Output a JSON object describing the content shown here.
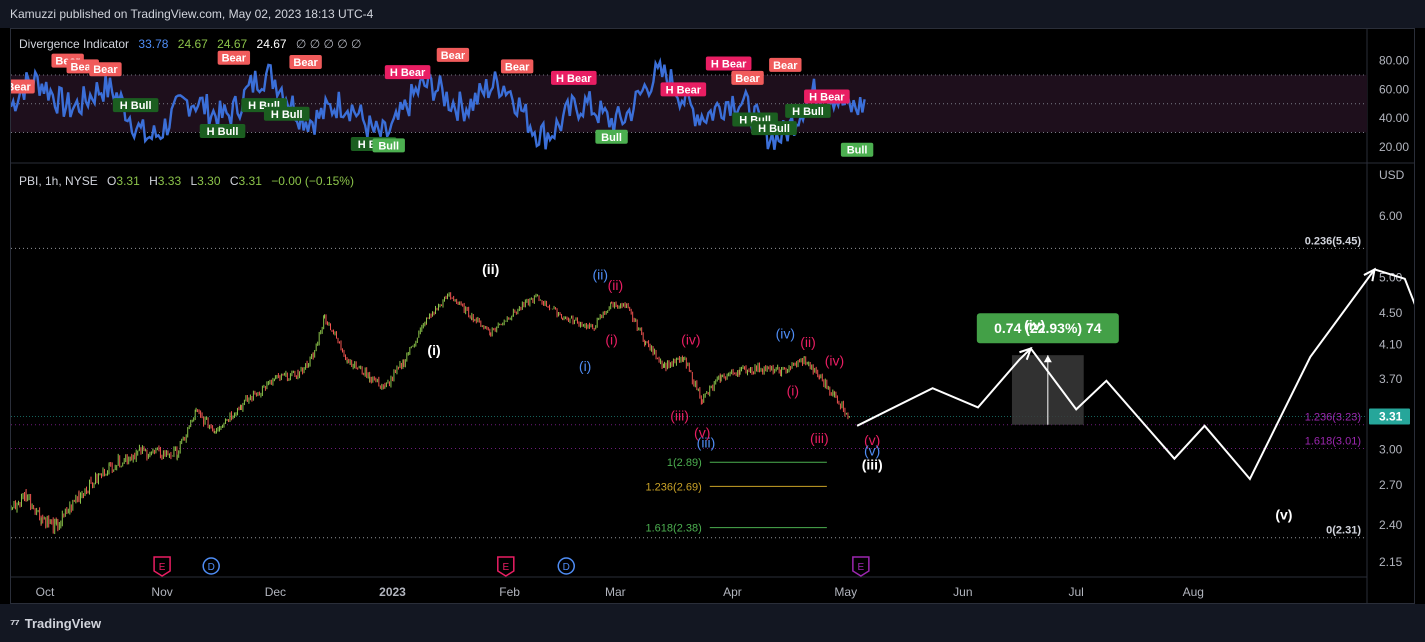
{
  "header": {
    "publish_text": "Kamuzzi published on TradingView.com, May 02, 2023 18:13 UTC-4"
  },
  "footer": {
    "brand": "TradingView"
  },
  "indicator": {
    "name": "Divergence Indicator",
    "values": [
      "33.78",
      "24.67",
      "24.67",
      "24.67"
    ],
    "value_colors": [
      "#4f8df5",
      "#8bc34a",
      "#8bc34a",
      "#ffffff"
    ],
    "placeholders": "∅ ∅ ∅ ∅ ∅",
    "axis_ticks": [
      80,
      60,
      40,
      20
    ],
    "axis_labels": [
      "80.00",
      "60.00",
      "40.00",
      "20.00"
    ],
    "ylim": [
      15,
      95
    ],
    "band": [
      30,
      70
    ],
    "midline": 50,
    "signals": [
      {
        "label": "Bear",
        "type": "bear",
        "x": "2022-09-24",
        "y": 62
      },
      {
        "label": "Bear",
        "type": "bear",
        "x": "2022-10-07",
        "y": 80
      },
      {
        "label": "Bear",
        "type": "bear",
        "x": "2022-10-11",
        "y": 76
      },
      {
        "label": "Bear",
        "type": "bear",
        "x": "2022-10-17",
        "y": 74
      },
      {
        "label": "H Bull",
        "type": "hbull",
        "x": "2022-10-25",
        "y": 49
      },
      {
        "label": "Bear",
        "type": "bear",
        "x": "2022-11-20",
        "y": 82
      },
      {
        "label": "H Bull",
        "type": "hbull",
        "x": "2022-11-17",
        "y": 31
      },
      {
        "label": "H Bull",
        "type": "hbull",
        "x": "2022-11-28",
        "y": 49
      },
      {
        "label": "H Bull",
        "type": "hbull",
        "x": "2022-12-04",
        "y": 43
      },
      {
        "label": "Bear",
        "type": "bear",
        "x": "2022-12-09",
        "y": 79
      },
      {
        "label": "H Bull",
        "type": "hbull",
        "x": "2022-12-27",
        "y": 22
      },
      {
        "label": "Bull",
        "type": "bull",
        "x": "2022-12-31",
        "y": 21
      },
      {
        "label": "H Bear",
        "type": "hbear",
        "x": "2023-01-05",
        "y": 72
      },
      {
        "label": "Bear",
        "type": "bear",
        "x": "2023-01-17",
        "y": 84
      },
      {
        "label": "Bear",
        "type": "bear",
        "x": "2023-02-03",
        "y": 76
      },
      {
        "label": "H Bear",
        "type": "hbear",
        "x": "2023-02-18",
        "y": 68
      },
      {
        "label": "Bull",
        "type": "bull",
        "x": "2023-02-28",
        "y": 27
      },
      {
        "label": "H Bear",
        "type": "hbear",
        "x": "2023-03-19",
        "y": 60
      },
      {
        "label": "H Bear",
        "type": "hbear",
        "x": "2023-03-31",
        "y": 78
      },
      {
        "label": "Bear",
        "type": "bear",
        "x": "2023-04-05",
        "y": 68
      },
      {
        "label": "H Bull",
        "type": "hbull",
        "x": "2023-04-07",
        "y": 39
      },
      {
        "label": "Bear",
        "type": "bear",
        "x": "2023-04-15",
        "y": 77
      },
      {
        "label": "H Bull",
        "type": "hbull",
        "x": "2023-04-12",
        "y": 33
      },
      {
        "label": "H Bull",
        "type": "hbull",
        "x": "2023-04-21",
        "y": 45
      },
      {
        "label": "H Bear",
        "type": "hbear",
        "x": "2023-04-26",
        "y": 55
      },
      {
        "label": "Bull",
        "type": "bull",
        "x": "2023-05-04",
        "y": 18
      }
    ],
    "colors": {
      "line": "#3b6fd8",
      "bear": "#f05b5b",
      "hbear": "#e91e63",
      "bull": "#4caf50",
      "hbull": "#1b5e20",
      "band": "#1e0f1c"
    }
  },
  "symbol": {
    "name": "PBI, 1h, NYSE",
    "open_label": "O",
    "open": "3.31",
    "high_label": "H",
    "high": "3.33",
    "low_label": "L",
    "low": "3.30",
    "close_label": "C",
    "close": "3.31",
    "change": "−0.00 (−0.15%)",
    "currency": "USD"
  },
  "chart_data": {
    "type": "line",
    "title": "PBI, 1h, NYSE",
    "price_axis": {
      "scale": "log",
      "ylim": [
        2.05,
        7.0
      ],
      "ticks": [
        6.0,
        5.0,
        4.5,
        4.1,
        3.7,
        3.31,
        3.0,
        2.7,
        2.4,
        2.15
      ],
      "tick_labels": [
        "6.00",
        "5.00",
        "4.50",
        "4.10",
        "3.70",
        "3.31",
        "3.00",
        "2.70",
        "2.40",
        "2.15"
      ],
      "last_price": 3.31,
      "last_price_label": "3.31"
    },
    "time_axis": {
      "xlim": [
        "2022-09-22",
        "2023-09-16"
      ],
      "ticks": [
        "2022-10-01",
        "2022-11-01",
        "2022-12-01",
        "2023-01-01",
        "2023-02-01",
        "2023-03-01",
        "2023-04-01",
        "2023-05-01",
        "2023-06-01",
        "2023-07-01",
        "2023-08-01"
      ],
      "tick_labels": [
        "Oct",
        "Nov",
        "Dec",
        "2023",
        "Feb",
        "Mar",
        "Apr",
        "May",
        "Jun",
        "Jul",
        "Aug"
      ]
    },
    "price_series": [
      {
        "x": "2022-09-22",
        "y": 2.52
      },
      {
        "x": "2022-09-26",
        "y": 2.62
      },
      {
        "x": "2022-09-30",
        "y": 2.45
      },
      {
        "x": "2022-10-04",
        "y": 2.38
      },
      {
        "x": "2022-10-10",
        "y": 2.62
      },
      {
        "x": "2022-10-18",
        "y": 2.85
      },
      {
        "x": "2022-10-26",
        "y": 2.98
      },
      {
        "x": "2022-11-05",
        "y": 2.96
      },
      {
        "x": "2022-11-10",
        "y": 3.35
      },
      {
        "x": "2022-11-15",
        "y": 3.18
      },
      {
        "x": "2022-11-22",
        "y": 3.42
      },
      {
        "x": "2022-12-01",
        "y": 3.7
      },
      {
        "x": "2022-12-07",
        "y": 3.75
      },
      {
        "x": "2022-12-11",
        "y": 3.95
      },
      {
        "x": "2022-12-14",
        "y": 4.45
      },
      {
        "x": "2022-12-20",
        "y": 3.92
      },
      {
        "x": "2022-12-26",
        "y": 3.72
      },
      {
        "x": "2022-12-30",
        "y": 3.6
      },
      {
        "x": "2023-01-04",
        "y": 3.9
      },
      {
        "x": "2023-01-10",
        "y": 4.4
      },
      {
        "x": "2023-01-16",
        "y": 4.75
      },
      {
        "x": "2023-01-22",
        "y": 4.45
      },
      {
        "x": "2023-01-27",
        "y": 4.25
      },
      {
        "x": "2023-02-02",
        "y": 4.5
      },
      {
        "x": "2023-02-08",
        "y": 4.72
      },
      {
        "x": "2023-02-15",
        "y": 4.45
      },
      {
        "x": "2023-02-23",
        "y": 4.3
      },
      {
        "x": "2023-02-28",
        "y": 4.62
      },
      {
        "x": "2023-03-04",
        "y": 4.58
      },
      {
        "x": "2023-03-09",
        "y": 4.12
      },
      {
        "x": "2023-03-14",
        "y": 3.85
      },
      {
        "x": "2023-03-19",
        "y": 3.92
      },
      {
        "x": "2023-03-24",
        "y": 3.48
      },
      {
        "x": "2023-03-29",
        "y": 3.72
      },
      {
        "x": "2023-04-03",
        "y": 3.8
      },
      {
        "x": "2023-04-09",
        "y": 3.82
      },
      {
        "x": "2023-04-14",
        "y": 3.78
      },
      {
        "x": "2023-04-20",
        "y": 3.92
      },
      {
        "x": "2023-04-24",
        "y": 3.72
      },
      {
        "x": "2023-04-28",
        "y": 3.52
      },
      {
        "x": "2023-05-02",
        "y": 3.31
      }
    ],
    "projection": [
      {
        "x": "2023-05-04",
        "y": 3.22
      },
      {
        "x": "2023-05-24",
        "y": 3.6
      },
      {
        "x": "2023-06-05",
        "y": 3.4
      },
      {
        "x": "2023-06-16",
        "y": 3.92
      },
      {
        "x": "2023-06-19",
        "y": 4.05
      },
      {
        "x": "2023-07-01",
        "y": 3.38
      },
      {
        "x": "2023-07-09",
        "y": 3.68
      },
      {
        "x": "2023-07-27",
        "y": 2.92
      },
      {
        "x": "2023-08-04",
        "y": 3.22
      },
      {
        "x": "2023-08-16",
        "y": 2.75
      },
      {
        "x": "2023-09-01",
        "y": 3.95
      },
      {
        "x": "2023-09-18",
        "y": 5.12
      },
      {
        "x": "2023-09-26",
        "y": 4.98
      },
      {
        "x": "2023-10-26",
        "y": 2.12
      }
    ],
    "projection_label": "projection",
    "fib_levels": [
      {
        "label": "0.236(5.45)",
        "value": 5.45,
        "color": "#d1d4dc"
      },
      {
        "label": "1.236(3.23)",
        "value": 3.23,
        "color": "#9c27b0"
      },
      {
        "label": "1.618(3.01)",
        "value": 3.01,
        "color": "#9c27b0"
      },
      {
        "label": "0(2.31)",
        "value": 2.31,
        "color": "#d1d4dc"
      }
    ],
    "extension_levels": [
      {
        "label": "1(2.89)",
        "value": 2.89,
        "color": "#4caf50"
      },
      {
        "label": "1.236(2.69)",
        "value": 2.69,
        "color": "#c9a227"
      },
      {
        "label": "1.618(2.38)",
        "value": 2.38,
        "color": "#4caf50"
      }
    ],
    "measure": {
      "label": "0.74 (22.93%) 74",
      "from": 3.23,
      "to": 3.97,
      "x0": "2023-06-14",
      "x1": "2023-07-03"
    },
    "wave_labels": [
      {
        "text": "(ii)",
        "x": "2023-01-27",
        "y": 5.05,
        "color": "#ffffff"
      },
      {
        "text": "(i)",
        "x": "2023-01-12",
        "y": 3.97,
        "color": "#ffffff"
      },
      {
        "text": "(ii)",
        "x": "2023-02-25",
        "y": 4.97,
        "color": "#4f8df5"
      },
      {
        "text": "(ii)",
        "x": "2023-03-01",
        "y": 4.82,
        "color": "#e91e63"
      },
      {
        "text": "(i)",
        "x": "2023-02-28",
        "y": 4.1,
        "color": "#e91e63"
      },
      {
        "text": "(i)",
        "x": "2023-02-21",
        "y": 3.79,
        "color": "#4f8df5"
      },
      {
        "text": "(iv)",
        "x": "2023-03-21",
        "y": 4.1,
        "color": "#e91e63"
      },
      {
        "text": "(iii)",
        "x": "2023-03-18",
        "y": 3.27,
        "color": "#e91e63"
      },
      {
        "text": "(v)",
        "x": "2023-03-24",
        "y": 3.11,
        "color": "#e91e63"
      },
      {
        "text": "(iii)",
        "x": "2023-03-25",
        "y": 3.02,
        "color": "#4f8df5"
      },
      {
        "text": "(iv)",
        "x": "2023-04-15",
        "y": 4.17,
        "color": "#4f8df5"
      },
      {
        "text": "(ii)",
        "x": "2023-04-21",
        "y": 4.07,
        "color": "#e91e63"
      },
      {
        "text": "(iv)",
        "x": "2023-04-28",
        "y": 3.85,
        "color": "#e91e63"
      },
      {
        "text": "(i)",
        "x": "2023-04-17",
        "y": 3.52,
        "color": "#e91e63"
      },
      {
        "text": "(iii)",
        "x": "2023-04-24",
        "y": 3.06,
        "color": "#e91e63"
      },
      {
        "text": "(v)",
        "x": "2023-05-08",
        "y": 3.04,
        "color": "#e91e63"
      },
      {
        "text": "(v)",
        "x": "2023-05-08",
        "y": 2.95,
        "color": "#4f8df5"
      },
      {
        "text": "(iii)",
        "x": "2023-05-08",
        "y": 2.83,
        "color": "#ffffff"
      },
      {
        "text": "(iv)",
        "x": "2023-06-20",
        "y": 4.28,
        "color": "#ffffff"
      },
      {
        "text": "(v)",
        "x": "2023-08-25",
        "y": 2.44,
        "color": "#ffffff"
      }
    ],
    "event_markers": [
      {
        "text": "E",
        "x": "2022-11-01",
        "color": "#e91e63"
      },
      {
        "text": "D",
        "x": "2022-11-14",
        "color": "#4f8df5"
      },
      {
        "text": "E",
        "x": "2023-01-31",
        "color": "#e91e63"
      },
      {
        "text": "D",
        "x": "2023-02-16",
        "color": "#4f8df5"
      },
      {
        "text": "E",
        "x": "2023-05-05",
        "color": "#9c27b0"
      }
    ],
    "colors": {
      "up": "#8bc34a",
      "down": "#ef5350",
      "projection": "#ffffff",
      "grid": "#555",
      "measure_box": "#3a3a3a",
      "measure_label": "#43a047"
    }
  }
}
